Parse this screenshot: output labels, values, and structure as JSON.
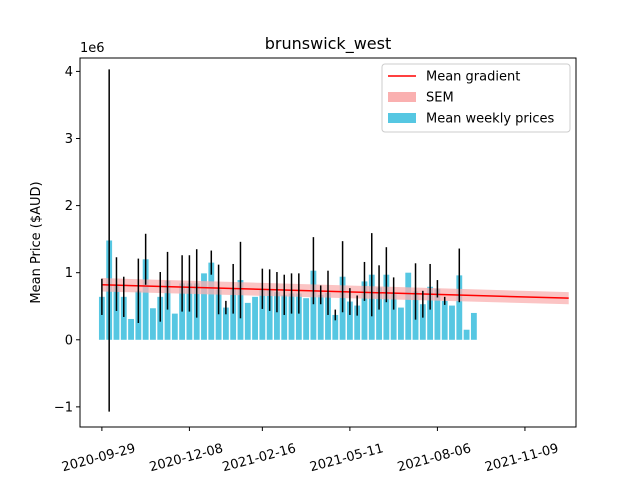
{
  "chart_data": {
    "type": "bar",
    "title": "brunswick_west",
    "xlabel": "",
    "ylabel": "Mean Price ($AUD)",
    "y_offset_text": "1e6",
    "ylim": [
      -1.3,
      4.2
    ],
    "yticks": [
      -1,
      0,
      1,
      2,
      3,
      4
    ],
    "yticklabels": [
      "−1",
      "0",
      "1",
      "2",
      "3",
      "4"
    ],
    "xlim": [
      -3,
      65
    ],
    "xticks": [
      0,
      12,
      22,
      34,
      46,
      58
    ],
    "xticklabels": [
      "2020-09-29",
      "2020-12-08",
      "2021-02-16",
      "2021-05-11",
      "2021-08-06",
      "2021-11-09"
    ],
    "legend_position": "upper right",
    "colors": {
      "bars": "#56c7e2",
      "errorbars": "#000000",
      "gradient": "#ff0000",
      "sem": "#fab0b0"
    },
    "series": [
      {
        "name": "Mean weekly prices",
        "kind": "bar",
        "values": [
          0.64,
          1.48,
          0.83,
          0.64,
          0.31,
          0.73,
          1.2,
          0.47,
          0.64,
          0.88,
          0.39,
          0.84,
          0.84,
          0.84,
          0.99,
          1.15,
          0.75,
          0.48,
          0.76,
          0.89,
          0.55,
          0.64,
          0.76,
          0.74,
          0.71,
          0.67,
          0.69,
          0.69,
          0.62,
          1.03,
          0.67,
          0.7,
          0.37,
          0.94,
          0.57,
          0.51,
          0.87,
          0.97,
          0.78,
          0.97,
          0.69,
          0.48,
          1.0,
          0.72,
          0.53,
          0.79,
          0.76,
          0.58,
          0.51,
          0.96,
          0.15,
          0.4
        ],
        "errors": [
          0.27,
          2.55,
          0.4,
          0.3,
          0.0,
          0.48,
          0.38,
          0.0,
          0.37,
          0.43,
          0.0,
          0.42,
          0.42,
          0.51,
          0.0,
          0.18,
          0.37,
          0.1,
          0.37,
          0.57,
          0.0,
          0.0,
          0.3,
          0.31,
          0.3,
          0.3,
          0.3,
          0.3,
          0.0,
          0.5,
          0.14,
          0.33,
          0.08,
          0.53,
          0.2,
          0.15,
          0.29,
          0.62,
          0.33,
          0.41,
          0.24,
          0.0,
          0.0,
          0.42,
          0.2,
          0.34,
          0.13,
          0.06,
          0.0,
          0.4,
          0.0,
          0.0
        ]
      },
      {
        "name": "Mean gradient",
        "kind": "line",
        "x": [
          0,
          64
        ],
        "values": [
          0.82,
          0.62
        ]
      },
      {
        "name": "SEM",
        "kind": "band",
        "x": [
          0,
          64
        ],
        "lower": [
          0.72,
          0.53
        ],
        "upper": [
          0.92,
          0.71
        ]
      }
    ]
  }
}
